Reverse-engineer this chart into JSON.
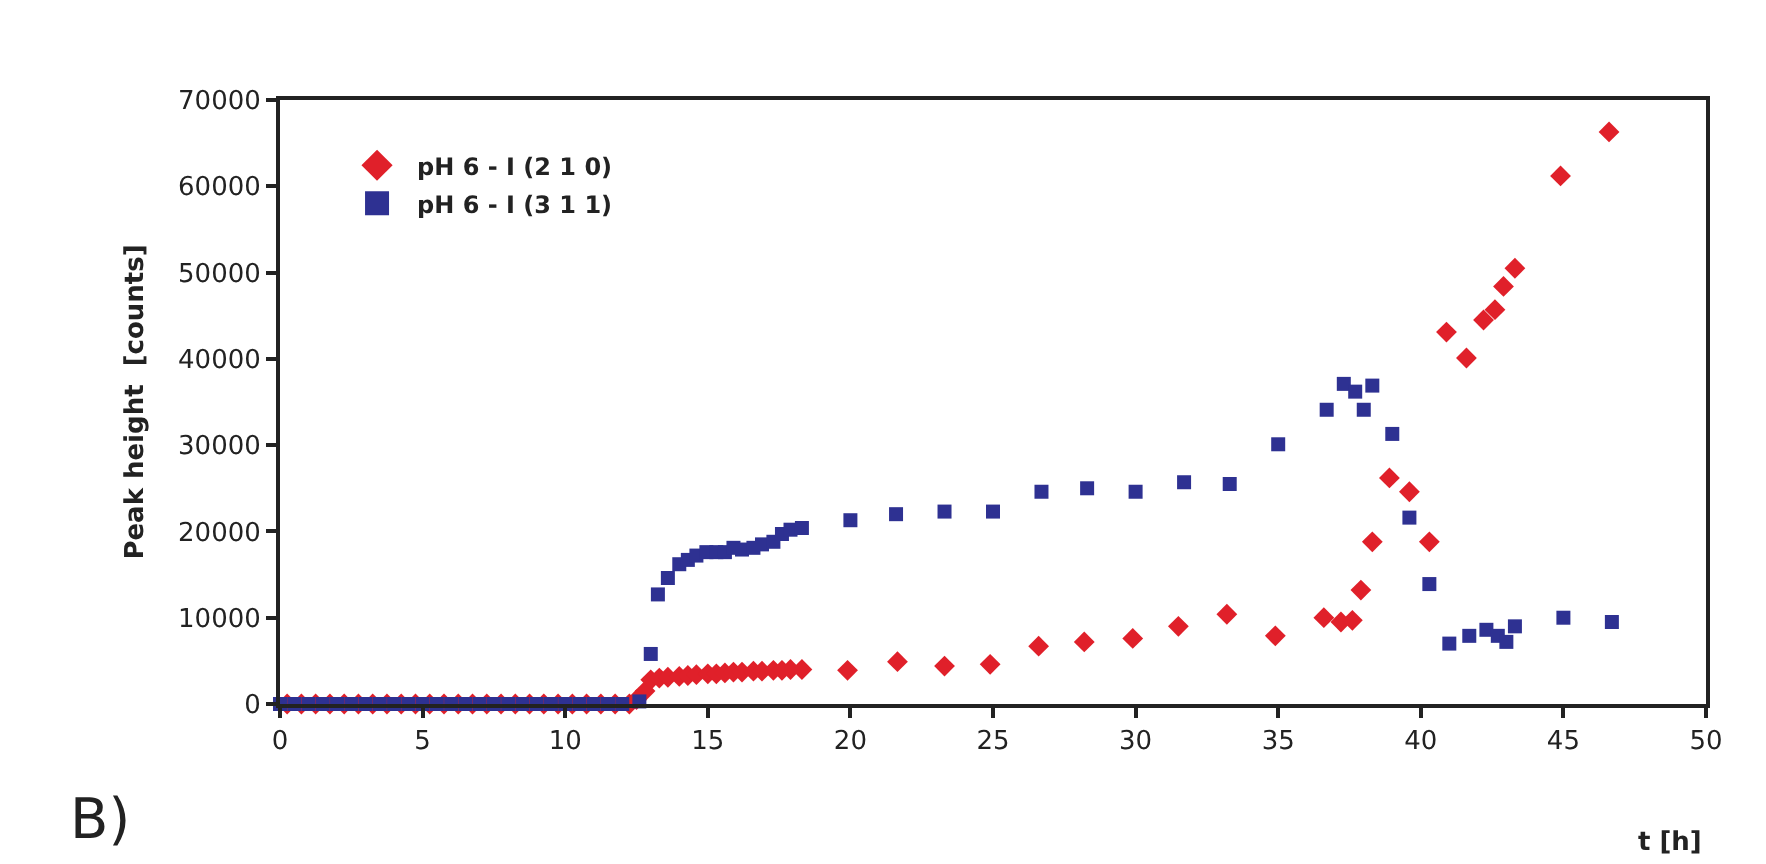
{
  "chart_data": {
    "type": "scatter",
    "xlabel": "t [h]",
    "ylabel": "Peak height  [counts]",
    "xlim": [
      0,
      50
    ],
    "xticks": [
      0,
      5,
      10,
      15,
      20,
      25,
      30,
      35,
      40,
      45,
      50
    ],
    "ylim": [
      0,
      70000
    ],
    "yticks": [
      0,
      10000,
      20000,
      30000,
      40000,
      50000,
      60000,
      70000
    ],
    "legend": "top left",
    "annotations": [
      "B)"
    ],
    "series": [
      {
        "name": "pH 6 - I (2 1 0)",
        "color": "#e0202a",
        "marker": "diamond",
        "x": [
          0.25,
          0.75,
          1.25,
          1.75,
          2.25,
          2.75,
          3.25,
          3.75,
          4.25,
          4.75,
          5.25,
          5.75,
          6.25,
          6.75,
          7.25,
          7.75,
          8.25,
          8.75,
          9.25,
          9.75,
          10.25,
          10.75,
          11.25,
          11.75,
          12.25,
          12.5,
          12.8,
          13.0,
          13.3,
          13.6,
          14.0,
          14.3,
          14.6,
          15.0,
          15.3,
          15.6,
          15.9,
          16.2,
          16.6,
          16.9,
          17.3,
          17.6,
          17.9,
          18.3,
          19.9,
          21.65,
          23.3,
          24.9,
          26.6,
          28.2,
          29.9,
          31.5,
          33.2,
          34.9,
          36.6,
          37.2,
          37.6,
          37.9,
          38.3,
          38.9,
          39.6,
          40.3,
          40.9,
          41.6,
          42.2,
          42.6,
          42.9,
          43.3,
          44.9,
          46.6
        ],
        "values": [
          0,
          0,
          0,
          0,
          0,
          0,
          0,
          0,
          0,
          0,
          0,
          0,
          0,
          0,
          0,
          0,
          0,
          0,
          0,
          0,
          0,
          0,
          0,
          0,
          0,
          500,
          1500,
          2800,
          3000,
          3100,
          3200,
          3300,
          3400,
          3500,
          3500,
          3600,
          3700,
          3700,
          3800,
          3800,
          3900,
          3900,
          4000,
          4000,
          3900,
          4900,
          4400,
          4600,
          6700,
          7200,
          7600,
          9000,
          10400,
          7900,
          10000,
          9500,
          9700,
          13200,
          18800,
          26200,
          24600,
          18800,
          43100,
          40100,
          44500,
          45700,
          48400,
          50500,
          61200,
          66300
        ]
      },
      {
        "name": "pH 6 - I (3 1 1)",
        "color": "#2e3192",
        "marker": "square",
        "x": [
          0,
          0.5,
          1,
          1.5,
          2,
          2.5,
          3,
          3.5,
          4,
          4.5,
          5,
          5.5,
          6,
          6.5,
          7,
          7.5,
          8,
          8.5,
          9,
          9.5,
          10,
          10.5,
          11,
          11.5,
          12,
          12.6,
          13.0,
          13.25,
          13.6,
          14.0,
          14.3,
          14.6,
          14.95,
          15.3,
          15.6,
          15.9,
          16.2,
          16.6,
          16.9,
          17.3,
          17.6,
          17.9,
          18.3,
          20.0,
          21.6,
          23.3,
          25.0,
          26.7,
          28.3,
          30.0,
          31.7,
          33.3,
          35.0,
          36.7,
          37.3,
          37.7,
          38.0,
          38.3,
          39.0,
          39.6,
          40.3,
          41.0,
          41.7,
          42.3,
          42.7,
          43.0,
          43.3,
          45.0,
          46.7
        ],
        "values": [
          0,
          0,
          0,
          0,
          0,
          0,
          0,
          0,
          0,
          0,
          0,
          0,
          0,
          0,
          0,
          0,
          0,
          0,
          0,
          0,
          0,
          0,
          0,
          0,
          0,
          300,
          5800,
          12700,
          14600,
          16200,
          16700,
          17200,
          17600,
          17600,
          17600,
          18100,
          17900,
          18100,
          18500,
          18800,
          19700,
          20200,
          20400,
          21300,
          22000,
          22300,
          22300,
          24600,
          25000,
          24600,
          25700,
          25500,
          30100,
          34100,
          37100,
          36200,
          34100,
          36900,
          31300,
          21600,
          13900,
          7000,
          7900,
          8600,
          7900,
          7200,
          9000,
          10000,
          9500
        ]
      }
    ]
  }
}
